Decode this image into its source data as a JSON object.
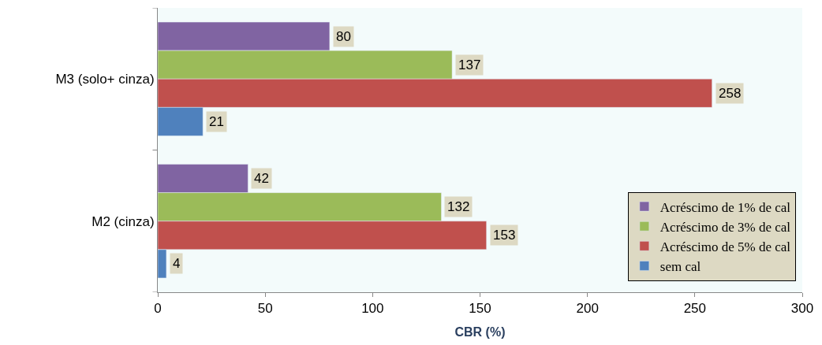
{
  "chart_data": {
    "type": "bar",
    "orientation": "horizontal",
    "categories": [
      "M3 (solo+ cinza)",
      "M2 (cinza)"
    ],
    "series": [
      {
        "name": "Acréscimo de 1% de cal",
        "color": "#8064a2",
        "values": [
          80,
          42
        ]
      },
      {
        "name": "Acréscimo de 3% de cal",
        "color": "#9bbb59",
        "values": [
          137,
          132
        ]
      },
      {
        "name": "Acréscimo de 5% de cal",
        "color": "#c0504d",
        "values": [
          258,
          153
        ]
      },
      {
        "name": "sem cal",
        "color": "#4f81bd",
        "values": [
          21,
          4
        ]
      }
    ],
    "xlabel": "CBR (%)",
    "xlim": [
      0,
      300
    ],
    "xticks": [
      0,
      50,
      100,
      150,
      200,
      250,
      300
    ],
    "grid": false,
    "legend": "bottom right",
    "data_labels": true
  }
}
